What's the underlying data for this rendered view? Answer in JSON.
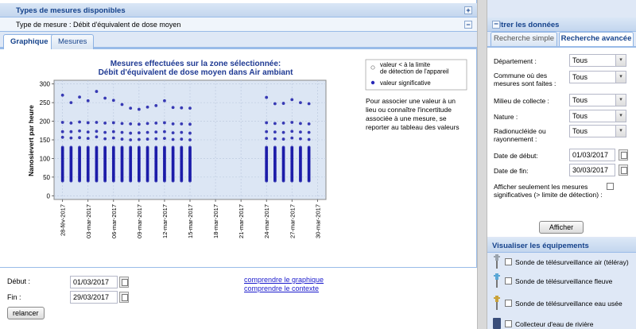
{
  "left": {
    "types_header": "Types de mesures disponibles",
    "type_mesure": "Type de mesure : Débit d'équivalent de dose moyen",
    "tabs": [
      "Graphique",
      "Mesures"
    ],
    "note": "Pour associer une valeur à un lieu ou connaître l'incertitude associée à une mesure, se reporter au tableau des valeurs",
    "form": {
      "debut_label": "Début :",
      "debut_value": "01/03/2017",
      "fin_label": "Fin :",
      "fin_value": "29/03/2017",
      "relancer": "relancer",
      "link_graph": "comprendre le graphique",
      "link_ctx": "comprendre le contexte"
    }
  },
  "right": {
    "filter_header": "Filtrer les données",
    "tabs": [
      "Recherche simple",
      "Recherche avancée"
    ],
    "fields": [
      {
        "label": "Département :",
        "value": "Tous"
      },
      {
        "label": "Commune où des mesures sont faites :",
        "value": "Tous"
      },
      {
        "label": "Milieu de collecte :",
        "value": "Tous"
      },
      {
        "label": "Nature :",
        "value": "Tous"
      },
      {
        "label": "Radionucléide ou rayonnement :",
        "value": "Tous"
      }
    ],
    "date_debut_label": "Date de début:",
    "date_debut_value": "01/03/2017",
    "date_fin_label": "Date de fin:",
    "date_fin_value": "30/03/2017",
    "significatives_label": "Afficher seulement les mesures significatives (> limite de détection) :",
    "afficher": "Afficher",
    "equip_header": "Visualiser les équipements",
    "equipments": [
      {
        "label": "Sonde de télésurveillance air (téléray)",
        "color": "#9aa3ad"
      },
      {
        "label": "Sonde de télésurveillance fleuve",
        "color": "#5aa7d6"
      },
      {
        "label": "Sonde de télésurveillance eau usée",
        "color": "#c9a23a"
      },
      {
        "label": "Collecteur d'eau de rivière",
        "color": "#3a4e7a"
      }
    ]
  },
  "icons": {
    "expand": "+",
    "collapse": "−"
  },
  "chart_data": {
    "type": "scatter",
    "title": "Mesures effectuées sur la zone sélectionnée:",
    "subtitle": "Débit d'équivalent de dose moyen dans Air ambiant",
    "ylabel": "Nanosievert par heure",
    "ylim": [
      -10,
      310
    ],
    "yticks": [
      0,
      50,
      100,
      150,
      200,
      250,
      300
    ],
    "xtick_labels": [
      "28-fév-2017",
      "03-mar-2017",
      "06-mar-2017",
      "09-mar-2017",
      "12-mar-2017",
      "15-mar-2017",
      "18-mar-2017",
      "21-mar-2017",
      "24-mar-2017",
      "27-mar-2017",
      "30-mar-2017"
    ],
    "xlim": [
      0,
      32
    ],
    "legend": [
      {
        "label": "valeur < à la limite de détection de l'appareil",
        "marker": "open-circle"
      },
      {
        "label": "valeur significative",
        "marker": "filled-circle"
      }
    ],
    "legend_position": "right",
    "series": [
      {
        "name": "valeur significative",
        "groups": [
          {
            "x": 1,
            "top": 270,
            "mid": [
              197,
              172,
              157
            ],
            "low": 40,
            "high": 130
          },
          {
            "x": 2,
            "top": 250,
            "mid": [
              195,
              172,
              155
            ],
            "low": 40,
            "high": 130
          },
          {
            "x": 3,
            "top": 265,
            "mid": [
              198,
              174,
              156
            ],
            "low": 40,
            "high": 130
          },
          {
            "x": 4,
            "top": 255,
            "mid": [
              196,
              171,
              154
            ],
            "low": 40,
            "high": 130
          },
          {
            "x": 5,
            "top": 280,
            "mid": [
              197,
              173,
              158
            ],
            "low": 40,
            "high": 130
          },
          {
            "x": 6,
            "top": 262,
            "mid": [
              195,
              170,
              153
            ],
            "low": 40,
            "high": 130
          },
          {
            "x": 7,
            "top": 256,
            "mid": [
              196,
              172,
              155
            ],
            "low": 40,
            "high": 130
          },
          {
            "x": 8,
            "top": 245,
            "mid": [
              194,
              170,
              152
            ],
            "low": 40,
            "high": 130
          },
          {
            "x": 9,
            "top": 235,
            "mid": [
              193,
              168,
              150
            ],
            "low": 40,
            "high": 130
          },
          {
            "x": 10,
            "top": 232,
            "mid": [
              192,
              169,
              151
            ],
            "low": 40,
            "high": 130
          },
          {
            "x": 11,
            "top": 238,
            "mid": [
              194,
              170,
              152
            ],
            "low": 40,
            "high": 130
          },
          {
            "x": 12,
            "top": 242,
            "mid": [
              195,
              171,
              153
            ],
            "low": 40,
            "high": 130
          },
          {
            "x": 13,
            "top": 255,
            "mid": [
              196,
              172,
              154
            ],
            "low": 40,
            "high": 130
          },
          {
            "x": 14,
            "top": 237,
            "mid": [
              193,
              169,
              151
            ],
            "low": 40,
            "high": 130
          },
          {
            "x": 15,
            "top": 236,
            "mid": [
              193,
              170,
              152
            ],
            "low": 40,
            "high": 130
          },
          {
            "x": 16,
            "top": 235,
            "mid": [
              192,
              168,
              150
            ],
            "low": 40,
            "high": 130
          },
          {
            "x": 25,
            "top": 264,
            "mid": [
              196,
              172,
              154
            ],
            "low": 40,
            "high": 130
          },
          {
            "x": 26,
            "top": 247,
            "mid": [
              194,
              171,
              153
            ],
            "low": 40,
            "high": 130
          },
          {
            "x": 27,
            "top": 248,
            "mid": [
              195,
              170,
              152
            ],
            "low": 40,
            "high": 130
          },
          {
            "x": 28,
            "top": 258,
            "mid": [
              197,
              173,
              155
            ],
            "low": 40,
            "high": 130
          },
          {
            "x": 29,
            "top": 250,
            "mid": [
              194,
              171,
              153
            ],
            "low": 40,
            "high": 130
          },
          {
            "x": 30,
            "top": 247,
            "mid": [
              193,
              170,
              151
            ],
            "low": 40,
            "high": 130
          }
        ]
      }
    ]
  }
}
